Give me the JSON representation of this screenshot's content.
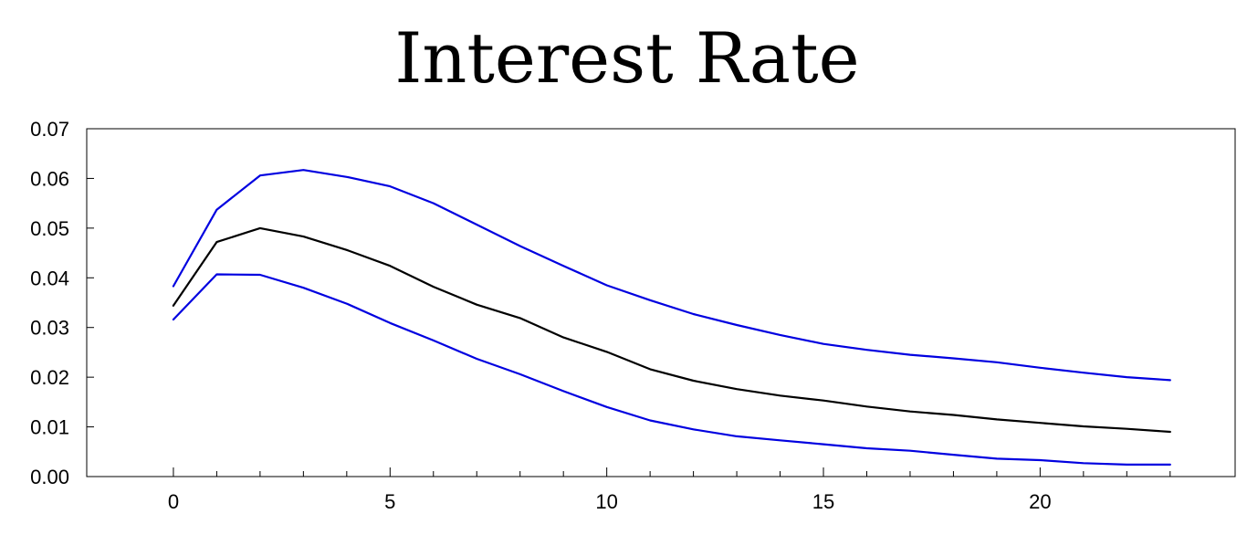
{
  "chart_data": {
    "type": "line",
    "title": "Interest Rate",
    "xlabel": "",
    "ylabel": "",
    "x": [
      0,
      1,
      2,
      3,
      4,
      5,
      6,
      7,
      8,
      9,
      10,
      11,
      12,
      13,
      14,
      15,
      16,
      17,
      18,
      19,
      20,
      21,
      22,
      23
    ],
    "xlim": [
      -2,
      24.5
    ],
    "ylim": [
      0,
      0.07
    ],
    "x_ticks": [
      0,
      5,
      10,
      15,
      20
    ],
    "x_tick_labels": [
      "0",
      "5",
      "10",
      "15",
      "20"
    ],
    "y_ticks": [
      0,
      0.01,
      0.02,
      0.03,
      0.04,
      0.05,
      0.06,
      0.07
    ],
    "y_tick_labels": [
      "0.00",
      "0.01",
      "0.02",
      "0.03",
      "0.04",
      "0.05",
      "0.06",
      "0.07"
    ],
    "grid": false,
    "legend": "none",
    "series": [
      {
        "role": "upper-band",
        "color": "#0000e0",
        "values": [
          0.0383,
          0.0537,
          0.0606,
          0.0617,
          0.0603,
          0.0584,
          0.055,
          0.0507,
          0.0464,
          0.0424,
          0.0385,
          0.0355,
          0.0327,
          0.0305,
          0.0285,
          0.0267,
          0.0255,
          0.0245,
          0.0238,
          0.023,
          0.0219,
          0.0209,
          0.02,
          0.0194
        ]
      },
      {
        "role": "point-estimate",
        "color": "#000000",
        "values": [
          0.0344,
          0.0472,
          0.05,
          0.0483,
          0.0456,
          0.0424,
          0.0382,
          0.0346,
          0.0319,
          0.028,
          0.0251,
          0.0216,
          0.0193,
          0.0176,
          0.0163,
          0.0153,
          0.0141,
          0.0131,
          0.0124,
          0.0115,
          0.0108,
          0.0101,
          0.0096,
          0.009
        ]
      },
      {
        "role": "lower-band",
        "color": "#0000e0",
        "values": [
          0.0316,
          0.0407,
          0.0406,
          0.038,
          0.0348,
          0.0309,
          0.0274,
          0.0237,
          0.0206,
          0.0172,
          0.014,
          0.0113,
          0.0095,
          0.0081,
          0.0073,
          0.0065,
          0.0057,
          0.0052,
          0.0044,
          0.0036,
          0.0033,
          0.0027,
          0.0024,
          0.0024
        ]
      }
    ]
  }
}
